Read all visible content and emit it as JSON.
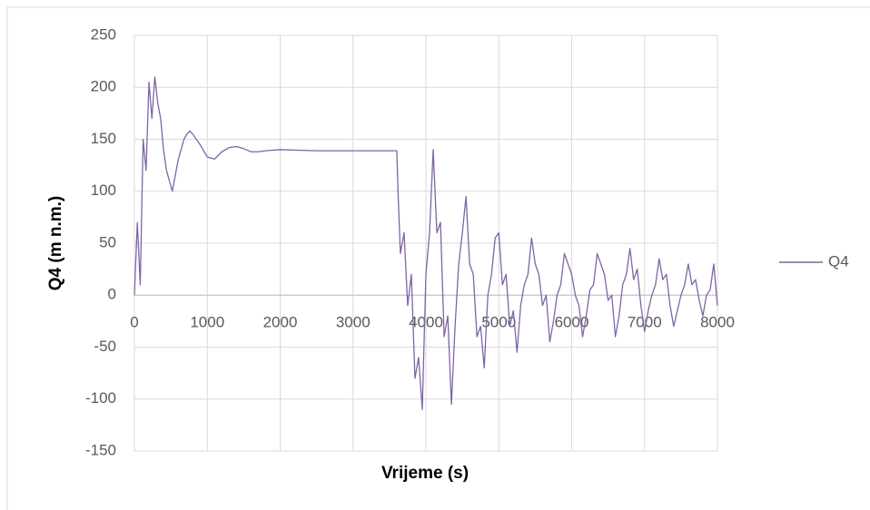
{
  "chart_data": {
    "type": "line",
    "x_label": "Vrijeme (s)",
    "y_label": "Q4 (m n.m.)",
    "xlim": [
      0,
      8000
    ],
    "ylim": [
      -150,
      250
    ],
    "xticks": [
      0,
      1000,
      2000,
      3000,
      4000,
      5000,
      6000,
      7000,
      8000
    ],
    "yticks": [
      -150,
      -100,
      -50,
      0,
      50,
      100,
      150,
      200,
      250
    ],
    "grid": true,
    "legend": "right",
    "x": [
      0,
      40,
      80,
      120,
      160,
      200,
      240,
      280,
      320,
      360,
      400,
      440,
      480,
      520,
      560,
      600,
      640,
      680,
      720,
      760,
      800,
      900,
      1000,
      1100,
      1200,
      1300,
      1400,
      1500,
      1600,
      1700,
      1800,
      2000,
      2500,
      3000,
      3500,
      3600,
      3620,
      3650,
      3700,
      3750,
      3800,
      3850,
      3900,
      3950,
      4000,
      4050,
      4100,
      4150,
      4200,
      4250,
      4300,
      4350,
      4400,
      4450,
      4500,
      4550,
      4600,
      4650,
      4700,
      4750,
      4800,
      4850,
      4900,
      4950,
      5000,
      5050,
      5100,
      5150,
      5200,
      5250,
      5300,
      5350,
      5400,
      5450,
      5500,
      5550,
      5600,
      5650,
      5700,
      5750,
      5800,
      5850,
      5900,
      5950,
      6000,
      6050,
      6100,
      6150,
      6200,
      6250,
      6300,
      6350,
      6400,
      6450,
      6500,
      6550,
      6600,
      6650,
      6700,
      6750,
      6800,
      6850,
      6900,
      6950,
      7000,
      7050,
      7100,
      7150,
      7200,
      7250,
      7300,
      7350,
      7400,
      7450,
      7500,
      7550,
      7600,
      7650,
      7700,
      7750,
      7800,
      7850,
      7900,
      7950,
      8000
    ],
    "series": [
      {
        "name": "Q4",
        "color": "#7f64a8",
        "values": [
          0,
          70,
          10,
          150,
          120,
          205,
          170,
          210,
          185,
          170,
          140,
          120,
          110,
          100,
          115,
          130,
          140,
          150,
          155,
          158,
          155,
          145,
          133,
          131,
          138,
          142,
          143,
          141,
          138,
          138,
          139,
          140,
          139,
          139,
          139,
          139,
          95,
          40,
          60,
          -10,
          20,
          -80,
          -60,
          -110,
          20,
          60,
          140,
          60,
          70,
          -40,
          -20,
          -105,
          -30,
          30,
          60,
          95,
          30,
          20,
          -40,
          -30,
          -70,
          0,
          20,
          55,
          60,
          10,
          20,
          -30,
          -15,
          -55,
          -10,
          10,
          20,
          55,
          30,
          20,
          -10,
          0,
          -45,
          -25,
          0,
          10,
          40,
          30,
          20,
          0,
          -10,
          -40,
          -20,
          5,
          10,
          40,
          30,
          20,
          -5,
          0,
          -40,
          -20,
          10,
          20,
          45,
          15,
          25,
          -10,
          -35,
          -15,
          0,
          10,
          35,
          15,
          20,
          -10,
          -30,
          -15,
          0,
          10,
          30,
          10,
          15,
          -5,
          -20,
          0,
          5,
          30,
          -10
        ]
      }
    ]
  }
}
